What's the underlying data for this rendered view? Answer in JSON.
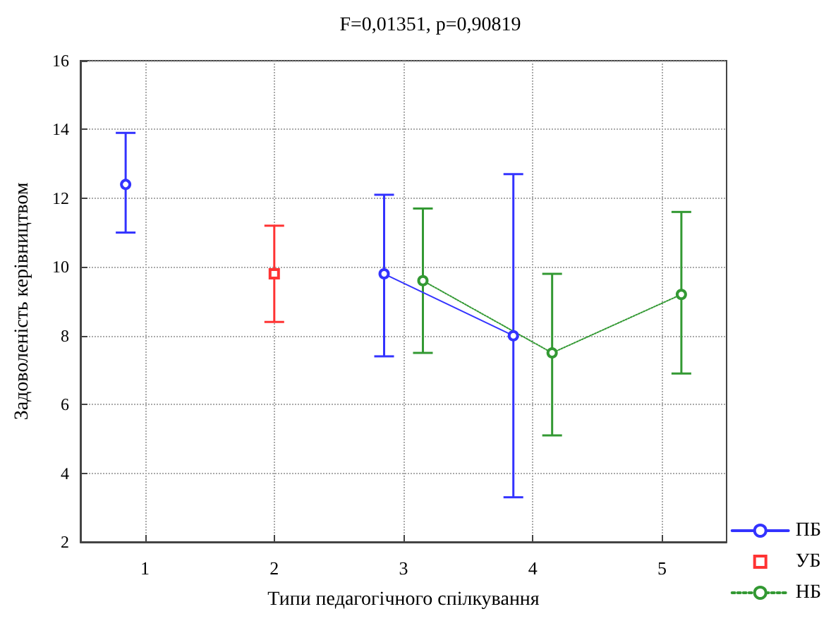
{
  "chart_data": {
    "type": "line",
    "title": "F=0,01351, p=0,90819",
    "xlabel": "Типи педагогічного спілкування",
    "ylabel": "Задоволеність керівництвом",
    "xlim": [
      0.5,
      5.5
    ],
    "xticks": [
      1,
      2,
      3,
      4,
      5
    ],
    "ylim": [
      2,
      16
    ],
    "yticks": [
      2,
      4,
      6,
      8,
      10,
      12,
      14,
      16
    ],
    "grid": true,
    "legend": "bottom right",
    "series": [
      {
        "name": "ПБ",
        "color": "#3333ff",
        "marker": "circle",
        "line_style": "solid",
        "x": [
          0.85,
          1.85,
          2.85,
          3.85
        ],
        "values": [
          12.4,
          null,
          9.8,
          8.0
        ],
        "errors": [
          [
            11.0,
            13.9
          ],
          null,
          [
            7.4,
            12.1
          ],
          [
            3.3,
            12.7
          ]
        ]
      },
      {
        "name": "УБ",
        "color": "#ff3333",
        "marker": "square",
        "x": [
          2
        ],
        "values": [
          9.8
        ],
        "errors": [
          [
            8.4,
            11.2
          ]
        ]
      },
      {
        "name": "НБ",
        "color": "#339933",
        "marker": "circle",
        "line_style": "dotted",
        "x": [
          3.15,
          4.15,
          5.15
        ],
        "values": [
          9.6,
          7.5,
          9.2
        ],
        "errors": [
          [
            7.5,
            11.7
          ],
          [
            5.1,
            9.8
          ],
          [
            6.9,
            11.6
          ]
        ]
      }
    ]
  }
}
